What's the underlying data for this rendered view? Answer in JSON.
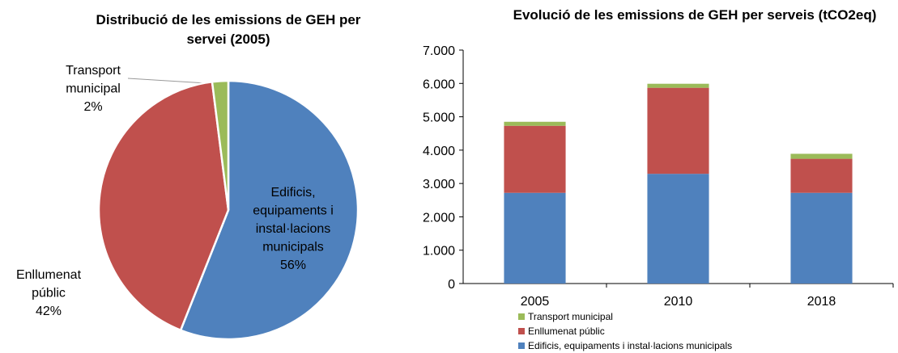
{
  "chart_data": [
    {
      "type": "pie",
      "title": "Distribució de les emissions de GEH per servei (2005)",
      "categories": [
        "Edificis, equipaments i instal·lacions municipals",
        "Enllumenat públic",
        "Transport municipal"
      ],
      "values": [
        56,
        42,
        2
      ],
      "value_labels": [
        "56%",
        "42%",
        "2%"
      ],
      "colors": [
        "#4f81bd",
        "#c0504d",
        "#9bbb59"
      ]
    },
    {
      "type": "bar",
      "stacked": true,
      "title": "Evolució de les emissions de GEH per serveis (tCO2eq)",
      "categories": [
        "2005",
        "2010",
        "2018"
      ],
      "series": [
        {
          "name": "Edificis, equipaments i instal·lacions municipals",
          "color": "#4f81bd",
          "values": [
            2720,
            3290,
            2720
          ]
        },
        {
          "name": "Enllumenat públic",
          "color": "#c0504d",
          "values": [
            2010,
            2580,
            1020
          ]
        },
        {
          "name": "Transport municipal",
          "color": "#9bbb59",
          "values": [
            120,
            120,
            150
          ]
        }
      ],
      "ylim": [
        0,
        7000
      ],
      "yticks": [
        0,
        {
          "value": 1000,
          "label": "1.000"
        },
        {
          "value": 2000,
          "label": "2.000"
        },
        {
          "value": 3000,
          "label": "3.000"
        },
        {
          "value": 4000,
          "label": "4.000"
        },
        {
          "value": 5000,
          "label": "5.000"
        },
        {
          "value": 6000,
          "label": "6.000"
        },
        {
          "value": 7000,
          "label": "7.000"
        }
      ],
      "legend": "bottom"
    }
  ]
}
